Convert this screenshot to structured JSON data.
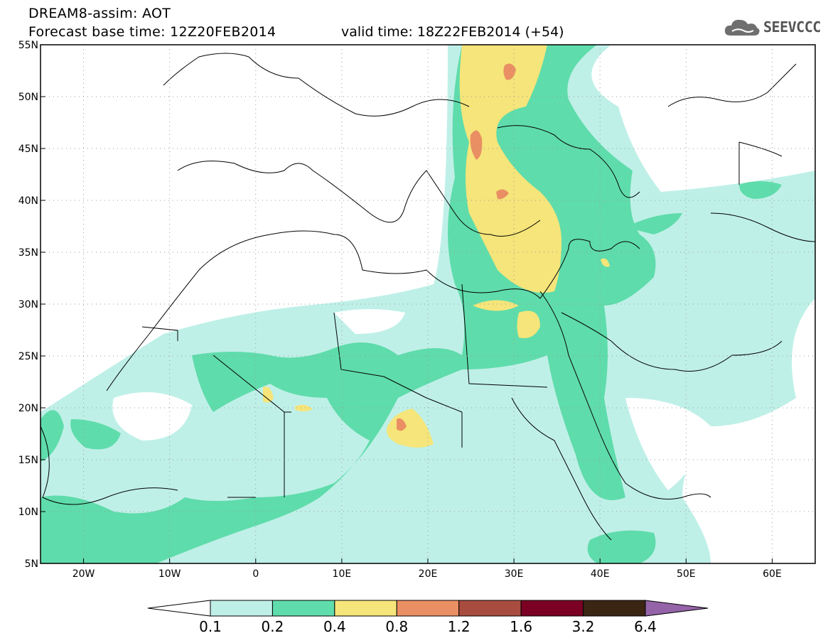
{
  "title": {
    "line1": "DREAM8-assim: AOT",
    "line2": "Forecast base time: 12Z20FEB2014",
    "valid": "valid time: 18Z22FEB2014 (+54)"
  },
  "logo": {
    "text": "SEEVCCC",
    "icon": "cloud-icon"
  },
  "map": {
    "lat_labels": [
      "55N",
      "50N",
      "45N",
      "40N",
      "35N",
      "30N",
      "25N",
      "20N",
      "15N",
      "10N",
      "5N"
    ],
    "lat_values": [
      55,
      50,
      45,
      40,
      35,
      30,
      25,
      20,
      15,
      10,
      5
    ],
    "lon_labels": [
      "20W",
      "10W",
      "0",
      "10E",
      "20E",
      "30E",
      "40E",
      "50E",
      "60E"
    ],
    "lon_values": [
      -20,
      -10,
      0,
      10,
      20,
      30,
      40,
      50,
      60
    ],
    "lon_range": [
      -25,
      65
    ],
    "lat_range": [
      5,
      55
    ]
  },
  "colorbar": {
    "colors": [
      "#ffffff",
      "#bff0e8",
      "#5fdcab",
      "#f5e57a",
      "#ea8f63",
      "#a94c40",
      "#7b0024",
      "#3b2513",
      "#9463a8"
    ],
    "labels": [
      "0.1",
      "0.2",
      "0.4",
      "0.8",
      "1.2",
      "1.6",
      "3.2",
      "6.4"
    ]
  }
}
